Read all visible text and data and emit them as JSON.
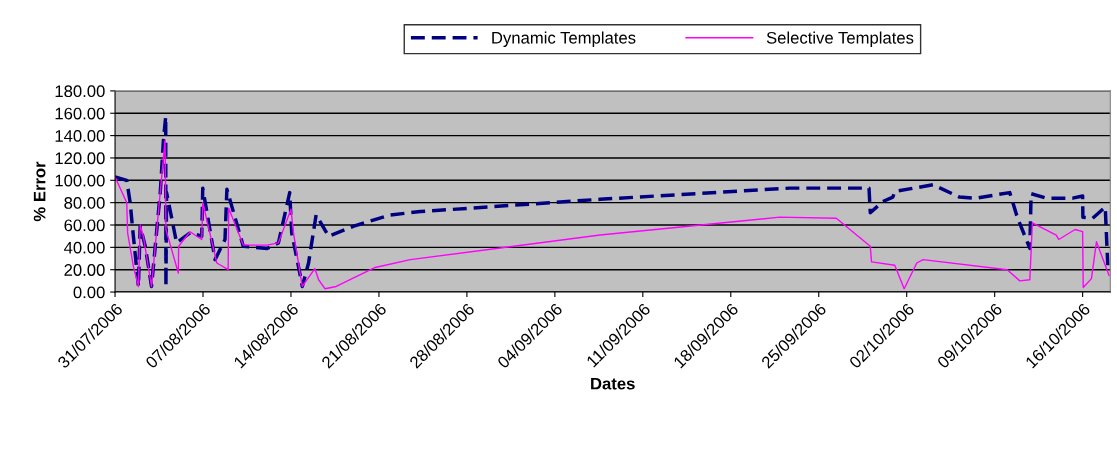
{
  "chart_data": {
    "type": "line",
    "xlabel": "Dates",
    "ylabel": "% Error",
    "legend": "top",
    "grid": "y",
    "marker": "none",
    "xlim": [
      "2006-07-31",
      "2006-10-18T04:50"
    ],
    "xticks": [
      {
        "value": "2006-07-31",
        "label": "31/07/2006"
      },
      {
        "value": "2006-08-07",
        "label": "07/08/2006"
      },
      {
        "value": "2006-08-14",
        "label": "14/08/2006"
      },
      {
        "value": "2006-08-21",
        "label": "21/08/2006"
      },
      {
        "value": "2006-08-28",
        "label": "28/08/2006"
      },
      {
        "value": "2006-09-04",
        "label": "04/09/2006"
      },
      {
        "value": "2006-09-11",
        "label": "11/09/2006"
      },
      {
        "value": "2006-09-18",
        "label": "18/09/2006"
      },
      {
        "value": "2006-09-25",
        "label": "25/09/2006"
      },
      {
        "value": "2006-10-02",
        "label": "02/10/2006"
      },
      {
        "value": "2006-10-09",
        "label": "09/10/2006"
      },
      {
        "value": "2006-10-16",
        "label": "16/10/2006"
      }
    ],
    "ylim": [
      0,
      180
    ],
    "yticks": [
      {
        "value": 0,
        "label": "0.00"
      },
      {
        "value": 20,
        "label": "20.00"
      },
      {
        "value": 40,
        "label": "40.00"
      },
      {
        "value": 60,
        "label": "60.00"
      },
      {
        "value": 80,
        "label": "80.00"
      },
      {
        "value": 100,
        "label": "100.00"
      },
      {
        "value": 120,
        "label": "120.00"
      },
      {
        "value": 140,
        "label": "140.00"
      },
      {
        "value": 160,
        "label": "160.00"
      },
      {
        "value": 180,
        "label": "180.00"
      }
    ],
    "series": [
      {
        "name": "Dynamic Templates",
        "color": "#000080",
        "line_style": "dashed",
        "x": [
          "2006-07-31T00:00",
          "2006-07-31T22:20",
          "2006-08-01T04:50",
          "2006-08-01T11:00",
          "2006-08-01T20:40",
          "2006-08-02T00:00",
          "2006-08-02T09:40",
          "2006-08-02T21:40",
          "2006-08-03T14:20",
          "2006-08-03T20:25",
          "2006-08-04T00:45",
          "2006-08-04T01:10",
          "2006-08-04T02:25",
          "2006-08-04T21:35",
          "2006-08-05T23:15",
          "2006-08-06T21:35",
          "2006-08-06T23:30",
          "2006-08-07T23:00",
          "2006-08-08T18:00",
          "2006-08-08T21:35",
          "2006-08-10T04:50",
          "2006-08-12T02:25",
          "2006-08-13T00:00",
          "2006-08-13T21:35",
          "2006-08-14T01:25",
          "2006-08-14T16:50",
          "2006-08-14T21:35",
          "2006-08-15T09:35",
          "2006-08-16T00:00",
          "2006-08-17T00:00",
          "2006-08-19T00:00",
          "2006-08-21T21:35",
          "2006-08-24T07:10",
          "2006-09-07T14:25",
          "2006-09-22T16:50",
          "2006-09-29T00:00",
          "2006-09-29T02:25",
          "2006-09-30T02:25",
          "2006-09-30T21:35",
          "2006-10-01T01:10",
          "2006-10-04T02:25",
          "2006-10-06T04:50",
          "2006-10-07T12:00",
          "2006-10-10T04:50",
          "2006-10-10T19:10",
          "2006-10-11T19:10",
          "2006-10-11T21:35",
          "2006-10-13T02:25",
          "2006-10-15T04:50",
          "2006-10-16T00:00",
          "2006-10-16T00:30",
          "2006-10-16T19:10",
          "2006-10-17T19:10",
          "2006-10-18T00:00"
        ],
        "values": [
          103,
          100,
          80,
          50,
          5,
          59,
          41,
          5,
          89,
          136,
          157,
          5,
          89,
          44,
          53,
          50,
          93,
          29,
          47,
          92,
          41,
          39,
          44,
          89,
          53,
          17,
          5,
          26,
          69,
          50,
          59,
          69,
          72,
          83,
          93,
          93,
          71,
          81,
          85,
          90,
          96,
          85,
          84,
          89,
          67,
          39,
          88,
          84,
          84,
          86,
          67,
          66,
          76,
          24
        ]
      },
      {
        "name": "Selective Templates",
        "color": "#ff00ff",
        "line_style": "solid",
        "x": [
          "2006-07-31T00:00",
          "2006-07-31T22:20",
          "2006-08-01T00:00",
          "2006-08-01T11:00",
          "2006-08-01T20:40",
          "2006-08-02T00:00",
          "2006-08-02T06:00",
          "2006-08-02T21:40",
          "2006-08-03T07:10",
          "2006-08-03T23:30",
          "2006-08-04T01:10",
          "2006-08-05T00:50",
          "2006-08-05T01:30",
          "2006-08-05T23:15",
          "2006-08-06T21:35",
          "2006-08-06T23:30",
          "2006-08-08T02:25",
          "2006-08-09T00:00",
          "2006-08-09T01:10",
          "2006-08-10T04:50",
          "2006-08-12T02:25",
          "2006-08-13T00:00",
          "2006-08-14T00:00",
          "2006-08-14T04:50",
          "2006-08-14T21:35",
          "2006-08-15T21:35",
          "2006-08-16T04:50",
          "2006-08-16T16:50",
          "2006-08-17T14:25",
          "2006-08-20T16:50",
          "2006-08-23T12:00",
          "2006-09-07T14:25",
          "2006-09-21T21:35",
          "2006-09-26T09:35",
          "2006-09-29T02:25",
          "2006-09-29T04:50",
          "2006-10-01T01:10",
          "2006-10-01T19:10",
          "2006-10-02T19:10",
          "2006-10-03T07:10",
          "2006-10-10T00:00",
          "2006-10-11T00:00",
          "2006-10-11T19:10",
          "2006-10-12T00:00",
          "2006-10-13T21:35",
          "2006-10-14T02:25",
          "2006-10-15T09:35",
          "2006-10-16T00:00",
          "2006-10-16T01:10",
          "2006-10-16T16:50",
          "2006-10-17T02:25",
          "2006-10-18T02:25"
        ],
        "values": [
          103,
          80,
          53,
          23,
          5,
          60,
          50,
          5,
          53,
          136,
          56,
          17,
          41,
          54,
          47,
          80,
          26,
          20,
          75,
          42,
          42,
          44,
          74,
          53,
          5,
          21,
          11,
          3,
          5,
          22,
          29,
          51,
          67,
          66,
          41,
          27,
          24,
          3,
          26,
          29,
          20,
          10,
          11,
          62,
          51,
          47,
          56,
          54,
          4,
          12,
          45,
          15
        ]
      }
    ]
  }
}
